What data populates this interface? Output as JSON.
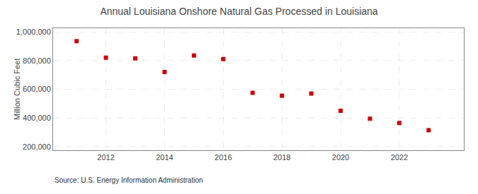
{
  "chart_data": {
    "type": "scatter",
    "title": "Annual Louisiana Onshore Natural Gas Processed in Louisiana",
    "ylabel": "Million Cubic Feet",
    "annotations": [
      "Source: U.S. Energy Information Administration"
    ],
    "x": [
      2011,
      2012,
      2013,
      2014,
      2015,
      2016,
      2017,
      2018,
      2019,
      2020,
      2021,
      2022,
      2023
    ],
    "values": [
      935000,
      820000,
      815000,
      720000,
      835000,
      810000,
      575000,
      555000,
      570000,
      450000,
      395000,
      365000,
      315000
    ],
    "color": "#cc0000",
    "marker": "square",
    "xlim": [
      2010.2,
      2024.2
    ],
    "xticks": [
      2012,
      2014,
      2016,
      2018,
      2020,
      2022
    ],
    "ylim": [
      175000,
      1025000
    ],
    "yticks": [
      {
        "value": 200000,
        "label": "200,000"
      },
      {
        "value": 400000,
        "label": "400,000"
      },
      {
        "value": 600000,
        "label": "600,000"
      },
      {
        "value": 800000,
        "label": "800,000"
      },
      {
        "value": 1000000,
        "label": "1,000,000"
      }
    ],
    "grid": true
  }
}
